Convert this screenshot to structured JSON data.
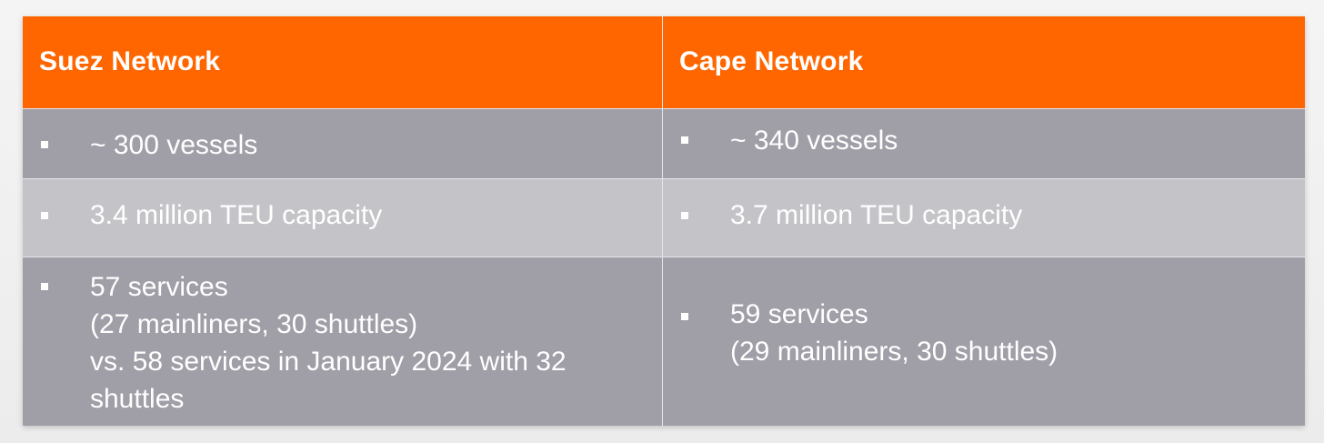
{
  "table": {
    "headers": [
      "Suez Network",
      "Cape Network"
    ],
    "rows": [
      {
        "suez": [
          "~ 300 vessels"
        ],
        "cape": [
          "~ 340 vessels"
        ]
      },
      {
        "suez": [
          "3.4 million TEU capacity"
        ],
        "cape": [
          "3.7 million TEU capacity"
        ]
      },
      {
        "suez": [
          "57 services",
          "(27 mainliners, 30 shuttles)",
          "vs. 58 services in January 2024 with 32",
          "shuttles"
        ],
        "cape": [
          "59 services",
          "(29 mainliners, 30 shuttles)"
        ]
      }
    ]
  },
  "colors": {
    "header_bg": "#ff6600",
    "row_dark": "#a09ea7",
    "row_light": "#c4c3c8",
    "text": "#ffffff"
  }
}
